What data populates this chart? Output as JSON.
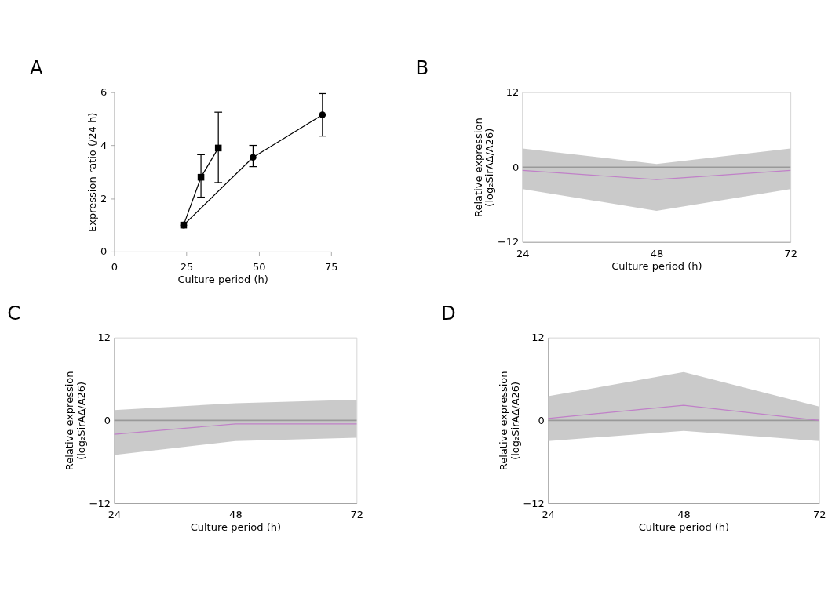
{
  "chart_data": [
    {
      "type": "line",
      "title": "A",
      "xlabel": "Culture period (h)",
      "ylabel": "Expression ratio  (/24 h)",
      "xlim": [
        0,
        75
      ],
      "xticks": [
        0,
        25,
        50,
        75
      ],
      "ylim": [
        0,
        6
      ],
      "yticks": [
        0,
        2,
        4,
        6
      ],
      "grid": false,
      "series": [
        {
          "color": "#000000",
          "marker": "square",
          "x": [
            24,
            30,
            36
          ],
          "values": [
            1.0,
            2.8,
            3.9
          ],
          "errors": [
            null,
            [
              2.05,
              3.65
            ],
            [
              2.6,
              5.25
            ]
          ]
        },
        {
          "color": "#000000",
          "marker": "circle",
          "x": [
            24,
            48,
            72
          ],
          "values": [
            1.0,
            3.55,
            5.15
          ],
          "errors": [
            null,
            [
              3.2,
              4.0
            ],
            [
              4.35,
              5.95
            ]
          ]
        }
      ]
    },
    {
      "type": "line",
      "title": "B",
      "xlabel": "Culture period (h)",
      "ylabel": "Relative expression\n(log₂SirAΔ/A26)",
      "xlim": [
        24,
        72
      ],
      "xticks": [
        24,
        48,
        72
      ],
      "ylim": [
        -12,
        12
      ],
      "yticks": [
        -12,
        0,
        12
      ],
      "grid": false,
      "marker": "none",
      "ref_lines": [
        {
          "axis": "y",
          "value": 0,
          "color": "#999999"
        }
      ],
      "series": [
        {
          "color": "#c080c8",
          "x": [
            24,
            48,
            72
          ],
          "values": [
            -0.5,
            -2.0,
            -0.5
          ],
          "lower": [
            -3.5,
            -7.0,
            -3.5
          ],
          "upper": [
            3.0,
            0.5,
            3.0
          ]
        }
      ]
    },
    {
      "type": "line",
      "title": "C",
      "xlabel": "Culture period (h)",
      "ylabel": "Relative expression\n(log₂SirAΔ/A26)",
      "xlim": [
        24,
        72
      ],
      "xticks": [
        24,
        48,
        72
      ],
      "ylim": [
        -12,
        12
      ],
      "yticks": [
        -12,
        0,
        12
      ],
      "grid": false,
      "marker": "none",
      "ref_lines": [
        {
          "axis": "y",
          "value": 0,
          "color": "#999999"
        }
      ],
      "series": [
        {
          "color": "#c080c8",
          "x": [
            24,
            48,
            72
          ],
          "values": [
            -2.0,
            -0.5,
            -0.5
          ],
          "lower": [
            -5.0,
            -3.0,
            -2.5
          ],
          "upper": [
            1.5,
            2.5,
            3.0
          ]
        }
      ]
    },
    {
      "type": "line",
      "title": "D",
      "xlabel": "Culture period (h)",
      "ylabel": "Relative expression\n(log₂SirAΔ/A26)",
      "xlim": [
        24,
        72
      ],
      "xticks": [
        24,
        48,
        72
      ],
      "ylim": [
        -12,
        12
      ],
      "yticks": [
        -12,
        0,
        12
      ],
      "grid": false,
      "marker": "none",
      "ref_lines": [
        {
          "axis": "y",
          "value": 0,
          "color": "#999999"
        }
      ],
      "series": [
        {
          "color": "#c080c8",
          "x": [
            24,
            48,
            72
          ],
          "values": [
            0.3,
            2.2,
            0.0
          ],
          "lower": [
            -3.0,
            -1.5,
            -3.0
          ],
          "upper": [
            3.5,
            7.0,
            2.0
          ]
        }
      ]
    }
  ]
}
